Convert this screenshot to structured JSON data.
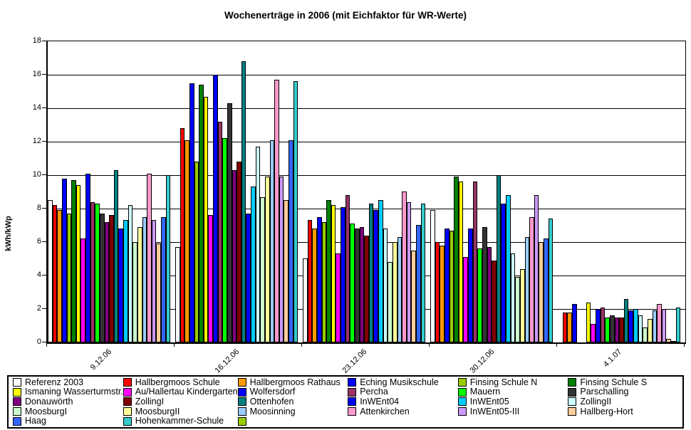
{
  "chart_data": {
    "type": "bar",
    "title": "Wochenerträge in 2006 (mit Eichfaktor für WR-Werte)",
    "ylabel": "kWh/kWp",
    "ylim": [
      0,
      18
    ],
    "yticks": [
      0,
      2,
      4,
      6,
      8,
      10,
      12,
      14,
      16,
      18
    ],
    "grid": true,
    "legend_position": "bottom",
    "categories": [
      "9.12.06",
      "16.12.06",
      "23.12.06",
      "30.12.06",
      "4.1.07"
    ],
    "series": [
      {
        "name": "Referenz 2003",
        "color": "#FFFFFF",
        "values": [
          8.5,
          5.7,
          5.0,
          7.9,
          0
        ]
      },
      {
        "name": "Hallbergmoos Schule",
        "color": "#FF0000",
        "values": [
          8.2,
          12.8,
          7.3,
          6.0,
          1.8
        ]
      },
      {
        "name": "Hallbergmoos Rathaus",
        "color": "#FF9900",
        "values": [
          7.9,
          12.1,
          6.8,
          5.8,
          1.8
        ]
      },
      {
        "name": "Eching Musikschule",
        "color": "#0000FF",
        "values": [
          9.8,
          15.5,
          7.5,
          6.8,
          2.3
        ]
      },
      {
        "name": "Finsing Schule N",
        "color": "#99CC00",
        "values": [
          7.7,
          10.8,
          7.2,
          6.7,
          0
        ]
      },
      {
        "name": "Finsing Schule S",
        "color": "#008000",
        "values": [
          9.7,
          15.4,
          8.5,
          9.9,
          0
        ]
      },
      {
        "name": "Ismaning Wasserturmstr.",
        "color": "#FFFF00",
        "values": [
          9.4,
          14.7,
          8.2,
          9.6,
          2.4
        ]
      },
      {
        "name": "Au/Hallertau Kindergarten",
        "color": "#FF00FF",
        "values": [
          6.2,
          7.6,
          5.3,
          5.1,
          1.1
        ]
      },
      {
        "name": "Wolfersdorf",
        "color": "#0000FF",
        "values": [
          10.1,
          16.0,
          8.1,
          6.8,
          2.0
        ]
      },
      {
        "name": "Percha",
        "color": "#993366",
        "values": [
          8.4,
          13.2,
          8.8,
          9.6,
          2.1
        ]
      },
      {
        "name": "Mauern",
        "color": "#00FF00",
        "values": [
          8.3,
          12.2,
          7.1,
          5.6,
          1.5
        ]
      },
      {
        "name": "Parschalling",
        "color": "#333333",
        "values": [
          7.7,
          14.3,
          6.8,
          6.9,
          1.6
        ]
      },
      {
        "name": "Donauwörth",
        "color": "#800080",
        "values": [
          7.2,
          10.3,
          6.9,
          5.7,
          1.5
        ]
      },
      {
        "name": "ZollingI",
        "color": "#800000",
        "values": [
          7.6,
          10.8,
          6.4,
          4.9,
          1.5
        ]
      },
      {
        "name": "Ottenhofen",
        "color": "#008080",
        "values": [
          10.3,
          16.8,
          8.3,
          10.0,
          2.6
        ]
      },
      {
        "name": "InWEnt04",
        "color": "#0000FF",
        "values": [
          6.8,
          7.7,
          7.9,
          8.3,
          1.9
        ]
      },
      {
        "name": "InWEnt05",
        "color": "#00CCFF",
        "values": [
          7.3,
          9.3,
          8.5,
          8.8,
          2.0
        ]
      },
      {
        "name": "ZollingII",
        "color": "#CCFFFF",
        "values": [
          8.2,
          11.7,
          6.8,
          5.3,
          1.6
        ]
      },
      {
        "name": "MoosburgI",
        "color": "#CCFFCC",
        "values": [
          6.0,
          8.7,
          4.8,
          3.9,
          0.9
        ]
      },
      {
        "name": "MoosburgII",
        "color": "#FFFF99",
        "values": [
          6.9,
          9.9,
          6.0,
          4.4,
          1.4
        ]
      },
      {
        "name": "Moosinning",
        "color": "#99CCFF",
        "values": [
          7.5,
          12.1,
          6.3,
          6.3,
          1.9
        ]
      },
      {
        "name": "Attenkirchen",
        "color": "#FF99CC",
        "values": [
          10.1,
          15.7,
          9.0,
          7.5,
          2.3
        ]
      },
      {
        "name": "InWEnt05-III",
        "color": "#CC99FF",
        "values": [
          7.3,
          9.9,
          8.4,
          8.8,
          2.0
        ]
      },
      {
        "name": "Hallberg-Hort",
        "color": "#FFCC99",
        "values": [
          5.9,
          8.5,
          5.5,
          6.0,
          0.2
        ]
      },
      {
        "name": "Haag",
        "color": "#3366FF",
        "values": [
          7.5,
          12.1,
          7.0,
          6.2,
          0.1
        ]
      },
      {
        "name": "Hohenkammer-Schule",
        "color": "#33CCCC",
        "values": [
          10.0,
          15.6,
          8.3,
          7.4,
          2.1
        ]
      },
      {
        "name": "",
        "color": "#99CC00",
        "values": [
          0,
          0,
          0,
          0,
          0
        ]
      }
    ]
  }
}
